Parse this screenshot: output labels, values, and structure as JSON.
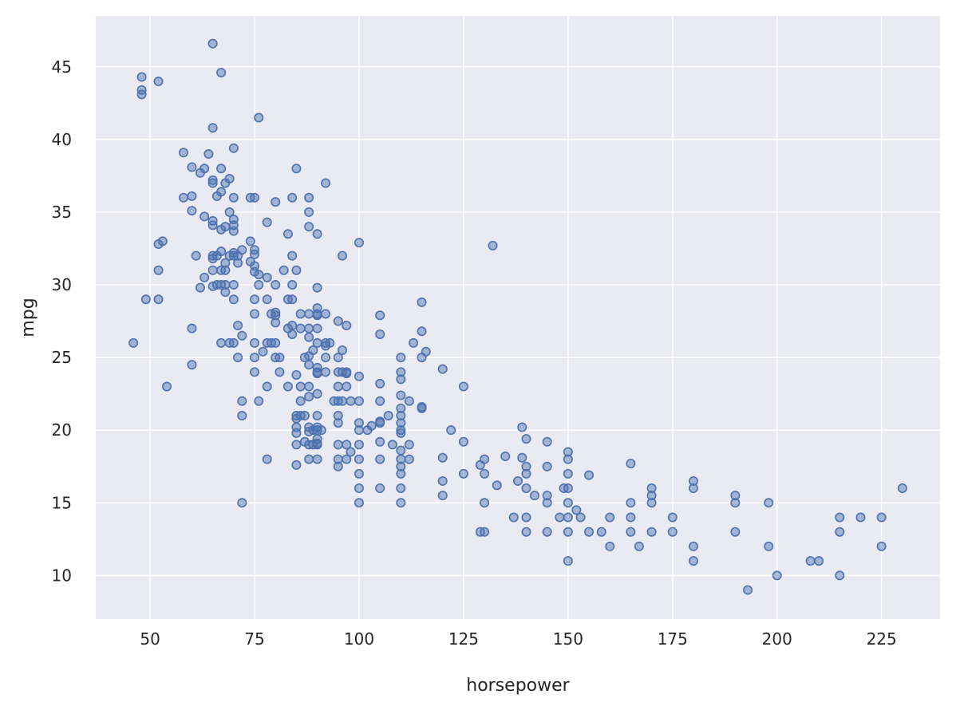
{
  "chart_data": {
    "type": "scatter",
    "title": "",
    "xlabel": "horsepower",
    "ylabel": "mpg",
    "xlim": [
      37,
      239
    ],
    "ylim": [
      7,
      48.5
    ],
    "xticks": [
      50,
      75,
      100,
      125,
      150,
      175,
      200,
      225
    ],
    "yticks": [
      10,
      15,
      20,
      25,
      30,
      35,
      40,
      45
    ],
    "grid": true,
    "marker_color": "#4c72b0",
    "background_color": "#eaeaf2",
    "points": [
      [
        46,
        26
      ],
      [
        48,
        44.3
      ],
      [
        48,
        43.4
      ],
      [
        48,
        43.1
      ],
      [
        49,
        29
      ],
      [
        52,
        44
      ],
      [
        52,
        32.8
      ],
      [
        52,
        31
      ],
      [
        52,
        29
      ],
      [
        53,
        33
      ],
      [
        54,
        23
      ],
      [
        58,
        39.1
      ],
      [
        58,
        36
      ],
      [
        60,
        38.1
      ],
      [
        60,
        36.1
      ],
      [
        60,
        35.1
      ],
      [
        60,
        27
      ],
      [
        60,
        24.5
      ],
      [
        61,
        32
      ],
      [
        62,
        37.7
      ],
      [
        62,
        29.8
      ],
      [
        63,
        38
      ],
      [
        63,
        34.7
      ],
      [
        63,
        30.5
      ],
      [
        64,
        39
      ],
      [
        65,
        46.6
      ],
      [
        65,
        40.8
      ],
      [
        65,
        37.2
      ],
      [
        65,
        37
      ],
      [
        65,
        34.4
      ],
      [
        65,
        34.1
      ],
      [
        65,
        32
      ],
      [
        65,
        31.8
      ],
      [
        65,
        31
      ],
      [
        65,
        29.9
      ],
      [
        66,
        36.1
      ],
      [
        66,
        32
      ],
      [
        66,
        30
      ],
      [
        67,
        44.6
      ],
      [
        67,
        38
      ],
      [
        67,
        36.4
      ],
      [
        67,
        33.8
      ],
      [
        67,
        32.3
      ],
      [
        67,
        31
      ],
      [
        67,
        30
      ],
      [
        67,
        26
      ],
      [
        68,
        37
      ],
      [
        68,
        34
      ],
      [
        68,
        31.5
      ],
      [
        68,
        31
      ],
      [
        68,
        30
      ],
      [
        68,
        29.5
      ],
      [
        69,
        37.3
      ],
      [
        69,
        35
      ],
      [
        69,
        32
      ],
      [
        69,
        26
      ],
      [
        70,
        39.4
      ],
      [
        70,
        36
      ],
      [
        70,
        34.5
      ],
      [
        70,
        34.1
      ],
      [
        70,
        33.7
      ],
      [
        70,
        32.2
      ],
      [
        70,
        32
      ],
      [
        70,
        30
      ],
      [
        70,
        29
      ],
      [
        70,
        26
      ],
      [
        71,
        32
      ],
      [
        71,
        31.5
      ],
      [
        71,
        27.2
      ],
      [
        71,
        25
      ],
      [
        72,
        32.4
      ],
      [
        72,
        26.5
      ],
      [
        72,
        22
      ],
      [
        72,
        21
      ],
      [
        72,
        15
      ],
      [
        74,
        36
      ],
      [
        74,
        33
      ],
      [
        74,
        31.6
      ],
      [
        75,
        36
      ],
      [
        75,
        32.4
      ],
      [
        75,
        32.1
      ],
      [
        75,
        31.3
      ],
      [
        75,
        30.9
      ],
      [
        75,
        29
      ],
      [
        75,
        28
      ],
      [
        75,
        26
      ],
      [
        75,
        25
      ],
      [
        75,
        24
      ],
      [
        76,
        41.5
      ],
      [
        76,
        30.7
      ],
      [
        76,
        30
      ],
      [
        76,
        22
      ],
      [
        77,
        25.4
      ],
      [
        78,
        34.3
      ],
      [
        78,
        30.5
      ],
      [
        78,
        29
      ],
      [
        78,
        26
      ],
      [
        78,
        23
      ],
      [
        78,
        18
      ],
      [
        79,
        28
      ],
      [
        79,
        26
      ],
      [
        80,
        35.7
      ],
      [
        80,
        30
      ],
      [
        80,
        28.1
      ],
      [
        80,
        27.9
      ],
      [
        80,
        27.4
      ],
      [
        80,
        26
      ],
      [
        80,
        25
      ],
      [
        81,
        25
      ],
      [
        81,
        24
      ],
      [
        82,
        31
      ],
      [
        83,
        33.5
      ],
      [
        83,
        29
      ],
      [
        83,
        27
      ],
      [
        83,
        23
      ],
      [
        84,
        36
      ],
      [
        84,
        32
      ],
      [
        84,
        30
      ],
      [
        84,
        29
      ],
      [
        84,
        27.2
      ],
      [
        84,
        26.6
      ],
      [
        85,
        38
      ],
      [
        85,
        31
      ],
      [
        85,
        23.8
      ],
      [
        85,
        21
      ],
      [
        85,
        20.8
      ],
      [
        85,
        20.2
      ],
      [
        85,
        19.8
      ],
      [
        85,
        19
      ],
      [
        85,
        17.6
      ],
      [
        86,
        28
      ],
      [
        86,
        27
      ],
      [
        86,
        23
      ],
      [
        86,
        22
      ],
      [
        86,
        21
      ],
      [
        87,
        25
      ],
      [
        87,
        21
      ],
      [
        87,
        19.2
      ],
      [
        88,
        36
      ],
      [
        88,
        35
      ],
      [
        88,
        34
      ],
      [
        88,
        28
      ],
      [
        88,
        27
      ],
      [
        88,
        26.4
      ],
      [
        88,
        25.1
      ],
      [
        88,
        24.5
      ],
      [
        88,
        23
      ],
      [
        88,
        22.3
      ],
      [
        88,
        20.2
      ],
      [
        88,
        19.9
      ],
      [
        88,
        19
      ],
      [
        88,
        18
      ],
      [
        89,
        25.5
      ],
      [
        89,
        20
      ],
      [
        89,
        19
      ],
      [
        90,
        33.5
      ],
      [
        90,
        29.8
      ],
      [
        90,
        28.4
      ],
      [
        90,
        28
      ],
      [
        90,
        27.9
      ],
      [
        90,
        27
      ],
      [
        90,
        26
      ],
      [
        90,
        24.3
      ],
      [
        90,
        24
      ],
      [
        90,
        23.9
      ],
      [
        90,
        22.5
      ],
      [
        90,
        21
      ],
      [
        90,
        20.2
      ],
      [
        90,
        20
      ],
      [
        90,
        19.4
      ],
      [
        90,
        19.1
      ],
      [
        90,
        19
      ],
      [
        90,
        18
      ],
      [
        91,
        20
      ],
      [
        92,
        37
      ],
      [
        92,
        28
      ],
      [
        92,
        26
      ],
      [
        92,
        25.8
      ],
      [
        92,
        25
      ],
      [
        92,
        24
      ],
      [
        93,
        26
      ],
      [
        94,
        22
      ],
      [
        95,
        27.5
      ],
      [
        95,
        25
      ],
      [
        95,
        24
      ],
      [
        95,
        23
      ],
      [
        95,
        22
      ],
      [
        95,
        21
      ],
      [
        95,
        20.5
      ],
      [
        95,
        19
      ],
      [
        95,
        18
      ],
      [
        95,
        17.5
      ],
      [
        96,
        32
      ],
      [
        96,
        25.5
      ],
      [
        96,
        24
      ],
      [
        96,
        22
      ],
      [
        97,
        27.2
      ],
      [
        97,
        24
      ],
      [
        97,
        23.9
      ],
      [
        97,
        23
      ],
      [
        97,
        19
      ],
      [
        97,
        18
      ],
      [
        98,
        22
      ],
      [
        98,
        18.5
      ],
      [
        100,
        32.9
      ],
      [
        100,
        23.7
      ],
      [
        100,
        22
      ],
      [
        100,
        20.5
      ],
      [
        100,
        20
      ],
      [
        100,
        19
      ],
      [
        100,
        18
      ],
      [
        100,
        17
      ],
      [
        100,
        16
      ],
      [
        100,
        15
      ],
      [
        102,
        20
      ],
      [
        103,
        20.3
      ],
      [
        105,
        27.9
      ],
      [
        105,
        26.6
      ],
      [
        105,
        23.2
      ],
      [
        105,
        22
      ],
      [
        105,
        20.6
      ],
      [
        105,
        20.5
      ],
      [
        105,
        19.2
      ],
      [
        105,
        18
      ],
      [
        105,
        16
      ],
      [
        107,
        21
      ],
      [
        108,
        19
      ],
      [
        110,
        25
      ],
      [
        110,
        24
      ],
      [
        110,
        23.5
      ],
      [
        110,
        22.4
      ],
      [
        110,
        21.5
      ],
      [
        110,
        21
      ],
      [
        110,
        20.5
      ],
      [
        110,
        20
      ],
      [
        110,
        19.8
      ],
      [
        110,
        18.6
      ],
      [
        110,
        18
      ],
      [
        110,
        17.5
      ],
      [
        110,
        17
      ],
      [
        110,
        16
      ],
      [
        110,
        15
      ],
      [
        112,
        22
      ],
      [
        112,
        19
      ],
      [
        112,
        18
      ],
      [
        113,
        26
      ],
      [
        115,
        28.8
      ],
      [
        115,
        26.8
      ],
      [
        115,
        25
      ],
      [
        115,
        21.6
      ],
      [
        115,
        21.5
      ],
      [
        116,
        25.4
      ],
      [
        120,
        24.2
      ],
      [
        120,
        18.1
      ],
      [
        120,
        16.5
      ],
      [
        120,
        15.5
      ],
      [
        122,
        20
      ],
      [
        125,
        23
      ],
      [
        125,
        19.2
      ],
      [
        125,
        17
      ],
      [
        129,
        17.6
      ],
      [
        129,
        13
      ],
      [
        130,
        18
      ],
      [
        130,
        17
      ],
      [
        130,
        15
      ],
      [
        130,
        13
      ],
      [
        132,
        32.7
      ],
      [
        133,
        16.2
      ],
      [
        135,
        18.2
      ],
      [
        137,
        14
      ],
      [
        138,
        16.5
      ],
      [
        139,
        20.2
      ],
      [
        139,
        18.1
      ],
      [
        140,
        19.4
      ],
      [
        140,
        17.5
      ],
      [
        140,
        17
      ],
      [
        140,
        16
      ],
      [
        140,
        14
      ],
      [
        140,
        13
      ],
      [
        142,
        15.5
      ],
      [
        145,
        19.2
      ],
      [
        145,
        17.5
      ],
      [
        145,
        15.5
      ],
      [
        145,
        15
      ],
      [
        145,
        13
      ],
      [
        148,
        14
      ],
      [
        149,
        16
      ],
      [
        150,
        18.5
      ],
      [
        150,
        18
      ],
      [
        150,
        17
      ],
      [
        150,
        16
      ],
      [
        150,
        15
      ],
      [
        150,
        14
      ],
      [
        150,
        13
      ],
      [
        150,
        11
      ],
      [
        152,
        14.5
      ],
      [
        153,
        14
      ],
      [
        155,
        16.9
      ],
      [
        155,
        13
      ],
      [
        158,
        13
      ],
      [
        160,
        14
      ],
      [
        160,
        12
      ],
      [
        165,
        17.7
      ],
      [
        165,
        15
      ],
      [
        165,
        14
      ],
      [
        165,
        13
      ],
      [
        167,
        12
      ],
      [
        170,
        16
      ],
      [
        170,
        15.5
      ],
      [
        170,
        15
      ],
      [
        170,
        13
      ],
      [
        175,
        14
      ],
      [
        175,
        13
      ],
      [
        180,
        16.5
      ],
      [
        180,
        16
      ],
      [
        180,
        12
      ],
      [
        180,
        11
      ],
      [
        190,
        15.5
      ],
      [
        190,
        15
      ],
      [
        190,
        13
      ],
      [
        193,
        9
      ],
      [
        198,
        15
      ],
      [
        198,
        12
      ],
      [
        200,
        10
      ],
      [
        208,
        11
      ],
      [
        210,
        11
      ],
      [
        215,
        14
      ],
      [
        215,
        13
      ],
      [
        215,
        10
      ],
      [
        220,
        14
      ],
      [
        225,
        14
      ],
      [
        225,
        12
      ],
      [
        230,
        16
      ]
    ]
  }
}
